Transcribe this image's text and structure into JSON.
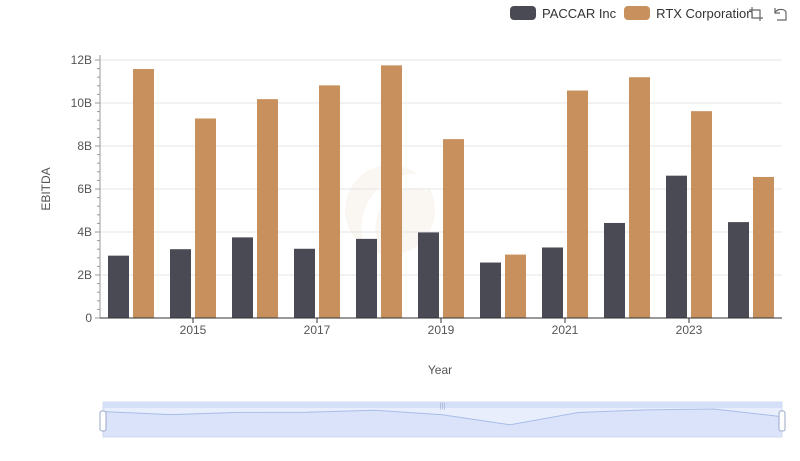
{
  "legend": {
    "series": [
      {
        "name": "PACCAR Inc",
        "color": "#4a4a55"
      },
      {
        "name": "RTX Corporation",
        "color": "#c8905c"
      }
    ]
  },
  "toolbox": {
    "icons": [
      "zoom-icon",
      "restore-icon"
    ]
  },
  "chart_data": {
    "type": "bar",
    "xlabel": "Year",
    "ylabel": "EBITDA",
    "ylim": [
      0,
      12000000000
    ],
    "y_ticks": [
      "0",
      "2B",
      "4B",
      "6B",
      "8B",
      "10B",
      "12B"
    ],
    "x_tick_labels": [
      "2015",
      "2017",
      "2019",
      "2021",
      "2023"
    ],
    "categories": [
      "2014",
      "2015",
      "2016",
      "2017",
      "2018",
      "2019",
      "2020",
      "2021",
      "2022",
      "2023",
      "2024"
    ],
    "series": [
      {
        "name": "PACCAR Inc",
        "color": "#4a4a55",
        "values": [
          2900000000,
          3200000000,
          3750000000,
          3220000000,
          3680000000,
          3980000000,
          2580000000,
          3280000000,
          4420000000,
          6620000000,
          4460000000
        ]
      },
      {
        "name": "RTX Corporation",
        "color": "#c8905c",
        "values": [
          11580000000,
          9280000000,
          10180000000,
          10820000000,
          11750000000,
          8320000000,
          2950000000,
          10580000000,
          11200000000,
          9620000000,
          6560000000
        ]
      }
    ],
    "grid": true,
    "legend_position": "top-right",
    "data_zoom": {
      "start": 0,
      "end": 100
    }
  }
}
